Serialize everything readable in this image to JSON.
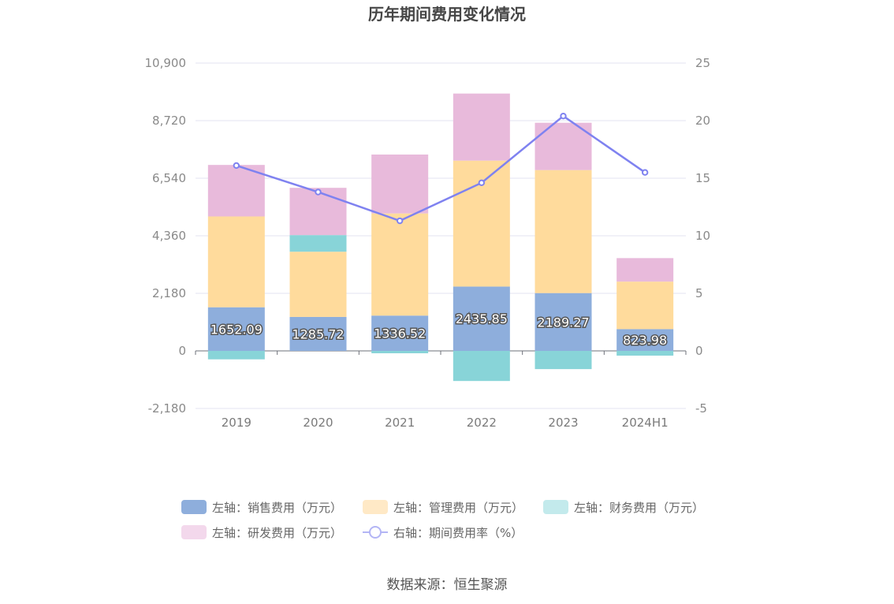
{
  "chart_data": {
    "type": "bar",
    "title": "历年期间费用变化情况",
    "categories": [
      "2019",
      "2020",
      "2021",
      "2022",
      "2023",
      "2024H1"
    ],
    "y_left": {
      "ticks": [
        "10,900",
        "8,720",
        "6,540",
        "4,360",
        "2,180",
        "0",
        "-2,180"
      ],
      "ylim": [
        -2180,
        10900
      ]
    },
    "y_right": {
      "ticks": [
        "25",
        "20",
        "15",
        "10",
        "5",
        "0",
        "-5"
      ],
      "ylim": [
        -5,
        25
      ]
    },
    "stacked": true,
    "series": [
      {
        "name": "左轴：销售费用（万元）",
        "axis": "left",
        "color": "#8eaedc",
        "values": [
          1652.09,
          1285.72,
          1336.52,
          2435.85,
          2189.27,
          823.98
        ],
        "labels": [
          "1652.09",
          "1285.72",
          "1336.52",
          "2435.85",
          "2189.27",
          "823.98"
        ]
      },
      {
        "name": "左轴：管理费用（万元）",
        "axis": "left",
        "color": "#ffdb9c",
        "values": [
          3440,
          2470,
          3870,
          4770,
          4660,
          1800
        ]
      },
      {
        "name": "左轴：财务费用（万元）",
        "axis": "left",
        "color": "#88d4d8",
        "values": [
          -320,
          630,
          -90,
          -1140,
          -690,
          -180
        ]
      },
      {
        "name": "左轴：研发费用（万元）",
        "axis": "left",
        "color": "#e8badb",
        "values": [
          1950,
          1790,
          2230,
          2540,
          1790,
          890
        ]
      },
      {
        "name": "右轴：期间费用率（%）",
        "axis": "right",
        "type": "line",
        "color": "#7f82f0",
        "values": [
          16.1,
          13.8,
          11.3,
          14.6,
          20.4,
          15.5
        ]
      }
    ],
    "legend_position": "bottom",
    "grid": true
  },
  "source": "数据来源：恒生聚源"
}
